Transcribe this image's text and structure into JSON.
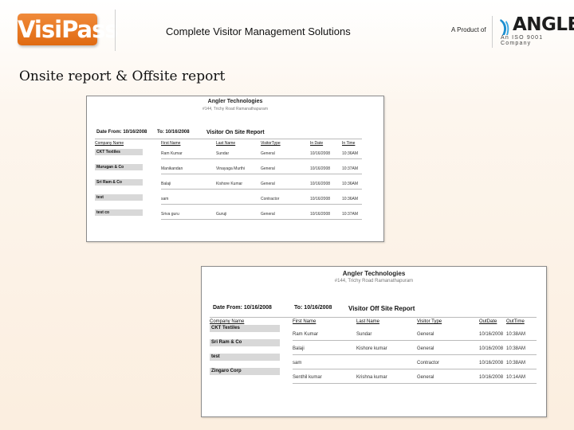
{
  "header": {
    "logo": "VisiPass",
    "tagline": "Complete Visitor Management Solutions",
    "product_of": "A Product of",
    "brand": "ANGLER",
    "brand_sub": "An ISO 9001 Company"
  },
  "slide_title": "Onsite report & Offsite report",
  "onsite": {
    "company": "Angler Technologies",
    "address": "#144, Trichy Road Ramanathapuram",
    "date_from": "Date From: 10/16/2008",
    "date_to": "To: 10/16/2008",
    "title": "Visitor On Site Report",
    "columns": [
      "Company Name",
      "First Name",
      "Last Name",
      "VisitorType",
      "In Date",
      "In Time"
    ],
    "groups": [
      {
        "company": "CKT Textiles",
        "rows": [
          [
            "Ram Kumar",
            "Sundar",
            "General",
            "10/16/2008",
            "10:36AM"
          ]
        ]
      },
      {
        "company": "Murugan & Co",
        "rows": [
          [
            "Manikandan",
            "Vinayaga Murthi",
            "General",
            "10/16/2008",
            "10:37AM"
          ]
        ]
      },
      {
        "company": "Sri Ram & Co",
        "rows": [
          [
            "Balaji",
            "Kishore Kumar",
            "General",
            "10/16/2008",
            "10:36AM"
          ]
        ]
      },
      {
        "company": "test",
        "rows": [
          [
            "sam",
            "",
            "Contractor",
            "10/16/2008",
            "10:36AM"
          ]
        ]
      },
      {
        "company": "test co",
        "rows": [
          [
            "Sriva guru",
            "Guruji",
            "General",
            "10/16/2008",
            "10:37AM"
          ]
        ]
      }
    ]
  },
  "offsite": {
    "company": "Angler Technologies",
    "address": "#144, Trichy Road Ramanathapuram",
    "date_from": "Date From: 10/16/2008",
    "date_to": "To: 10/16/2008",
    "title": "Visitor Off Site Report",
    "columns": [
      "Company Name",
      "First Name",
      "Last Name",
      "Visitor Type",
      "OutDate",
      "OutTime"
    ],
    "groups": [
      {
        "company": "CKT Textiles",
        "rows": [
          [
            "Ram Kumar",
            "Sundar",
            "General",
            "10/16/2008",
            "10:38AM"
          ]
        ]
      },
      {
        "company": "Sri Ram & Co",
        "rows": [
          [
            "Balaji",
            "Kishore kumar",
            "General",
            "10/16/2008",
            "10:38AM"
          ]
        ]
      },
      {
        "company": "test",
        "rows": [
          [
            "sam",
            "",
            "Contractor",
            "10/16/2008",
            "10:38AM"
          ]
        ]
      },
      {
        "company": "Zingaro Corp",
        "rows": [
          [
            "Senthil kumar",
            "Krishna kumar",
            "General",
            "10/16/2008",
            "10:14AM"
          ]
        ]
      }
    ]
  }
}
